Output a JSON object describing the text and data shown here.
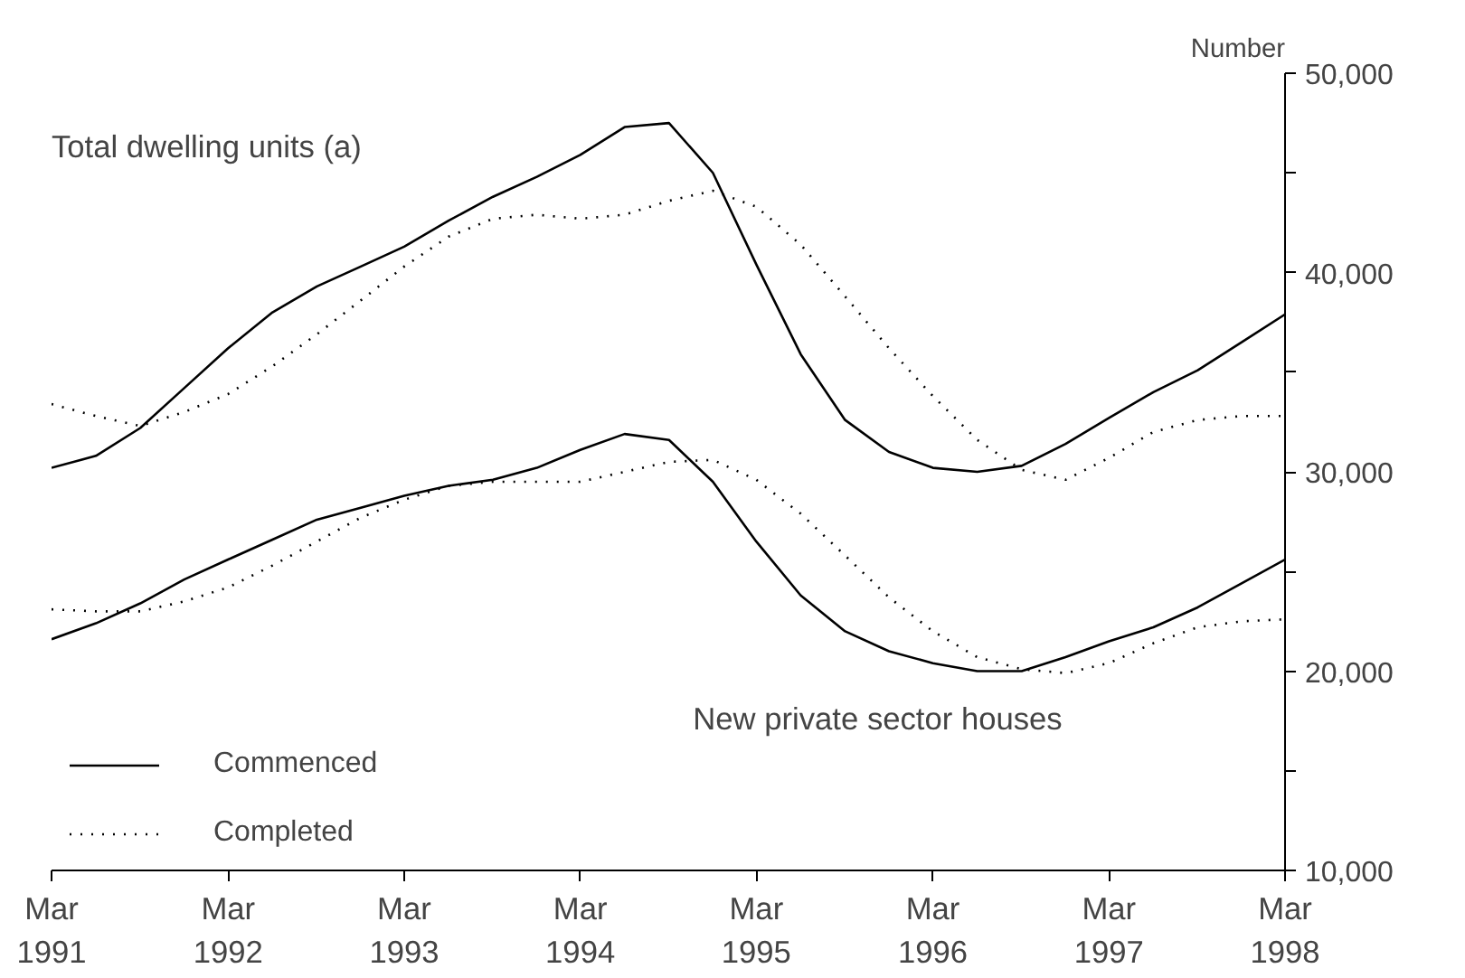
{
  "chart_data": {
    "type": "line",
    "ylabel": "Number",
    "x": [
      "1991-03",
      "1991-06",
      "1991-09",
      "1991-12",
      "1992-03",
      "1992-06",
      "1992-09",
      "1992-12",
      "1993-03",
      "1993-06",
      "1993-09",
      "1993-12",
      "1994-03",
      "1994-06",
      "1994-09",
      "1994-12",
      "1995-03",
      "1995-06",
      "1995-09",
      "1995-12",
      "1996-03",
      "1996-06",
      "1996-09",
      "1996-12",
      "1997-03",
      "1997-06",
      "1997-09",
      "1997-12",
      "1998-03"
    ],
    "series": [
      {
        "name": "Commenced",
        "color": "#000000",
        "line_style": "solid",
        "values": [
          30200,
          30800,
          32200,
          34200,
          36200,
          38000,
          39300,
          40300,
          41300,
          42600,
          43800,
          44800,
          45900,
          47300,
          47500,
          45000,
          40400,
          35900,
          32600,
          31000,
          30200,
          30000,
          30300,
          31400,
          32700,
          34000,
          35100,
          36500,
          37900
        ]
      },
      {
        "name": "Completed",
        "color": "#000000",
        "line_style": "dotted",
        "values": [
          33400,
          32800,
          32300,
          33000,
          33900,
          35300,
          36900,
          38600,
          40300,
          41800,
          42700,
          42900,
          42700,
          42900,
          43600,
          44100,
          43300,
          41400,
          38800,
          36200,
          33800,
          31600,
          30100,
          29600,
          30700,
          32000,
          32600,
          32800,
          32800
        ]
      },
      {
        "color": "#000000",
        "line_style": "solid",
        "values": [
          21600,
          22400,
          23400,
          24600,
          25600,
          26600,
          27600,
          28200,
          28800,
          29300,
          29600,
          30200,
          31100,
          31900,
          31600,
          29500,
          26500,
          23800,
          22000,
          21000,
          20400,
          20000,
          20000,
          20700,
          21500,
          22200,
          23200,
          24400,
          25600
        ]
      },
      {
        "color": "#000000",
        "line_style": "dotted",
        "values": [
          23100,
          23000,
          23000,
          23500,
          24200,
          25300,
          26500,
          27700,
          28600,
          29300,
          29500,
          29500,
          29500,
          30000,
          30500,
          30600,
          29600,
          27900,
          25800,
          23700,
          22000,
          20700,
          20100,
          19900,
          20400,
          21400,
          22200,
          22500,
          22600
        ]
      }
    ],
    "xlim": [
      "1991-03",
      "1998-03"
    ],
    "xticks": [
      {
        "value": "1991-03",
        "label": "Mar\n1991"
      },
      {
        "value": "1992-03",
        "label": "Mar\n1992"
      },
      {
        "value": "1993-03",
        "label": "Mar\n1993"
      },
      {
        "value": "1994-03",
        "label": "Mar\n1994"
      },
      {
        "value": "1995-03",
        "label": "Mar\n1995"
      },
      {
        "value": "1996-03",
        "label": "Mar\n1996"
      },
      {
        "value": "1997-03",
        "label": "Mar\n1997"
      },
      {
        "value": "1998-03",
        "label": "Mar\n1998"
      }
    ],
    "ylim": [
      10000,
      50000
    ],
    "yticks": [
      {
        "value": 10000,
        "label": "10,000"
      },
      {
        "value": 15000,
        "label": null
      },
      {
        "value": 20000,
        "label": "20,000"
      },
      {
        "value": 25000,
        "label": null
      },
      {
        "value": 30000,
        "label": "30,000"
      },
      {
        "value": 35000,
        "label": null
      },
      {
        "value": 40000,
        "label": "40,000"
      },
      {
        "value": 45000,
        "label": null
      },
      {
        "value": 50000,
        "label": "50,000"
      }
    ],
    "annotations": [
      "Total dwelling units (a)",
      "New private sector houses"
    ],
    "legend": "bottom left",
    "grid": false,
    "marker": "none"
  }
}
